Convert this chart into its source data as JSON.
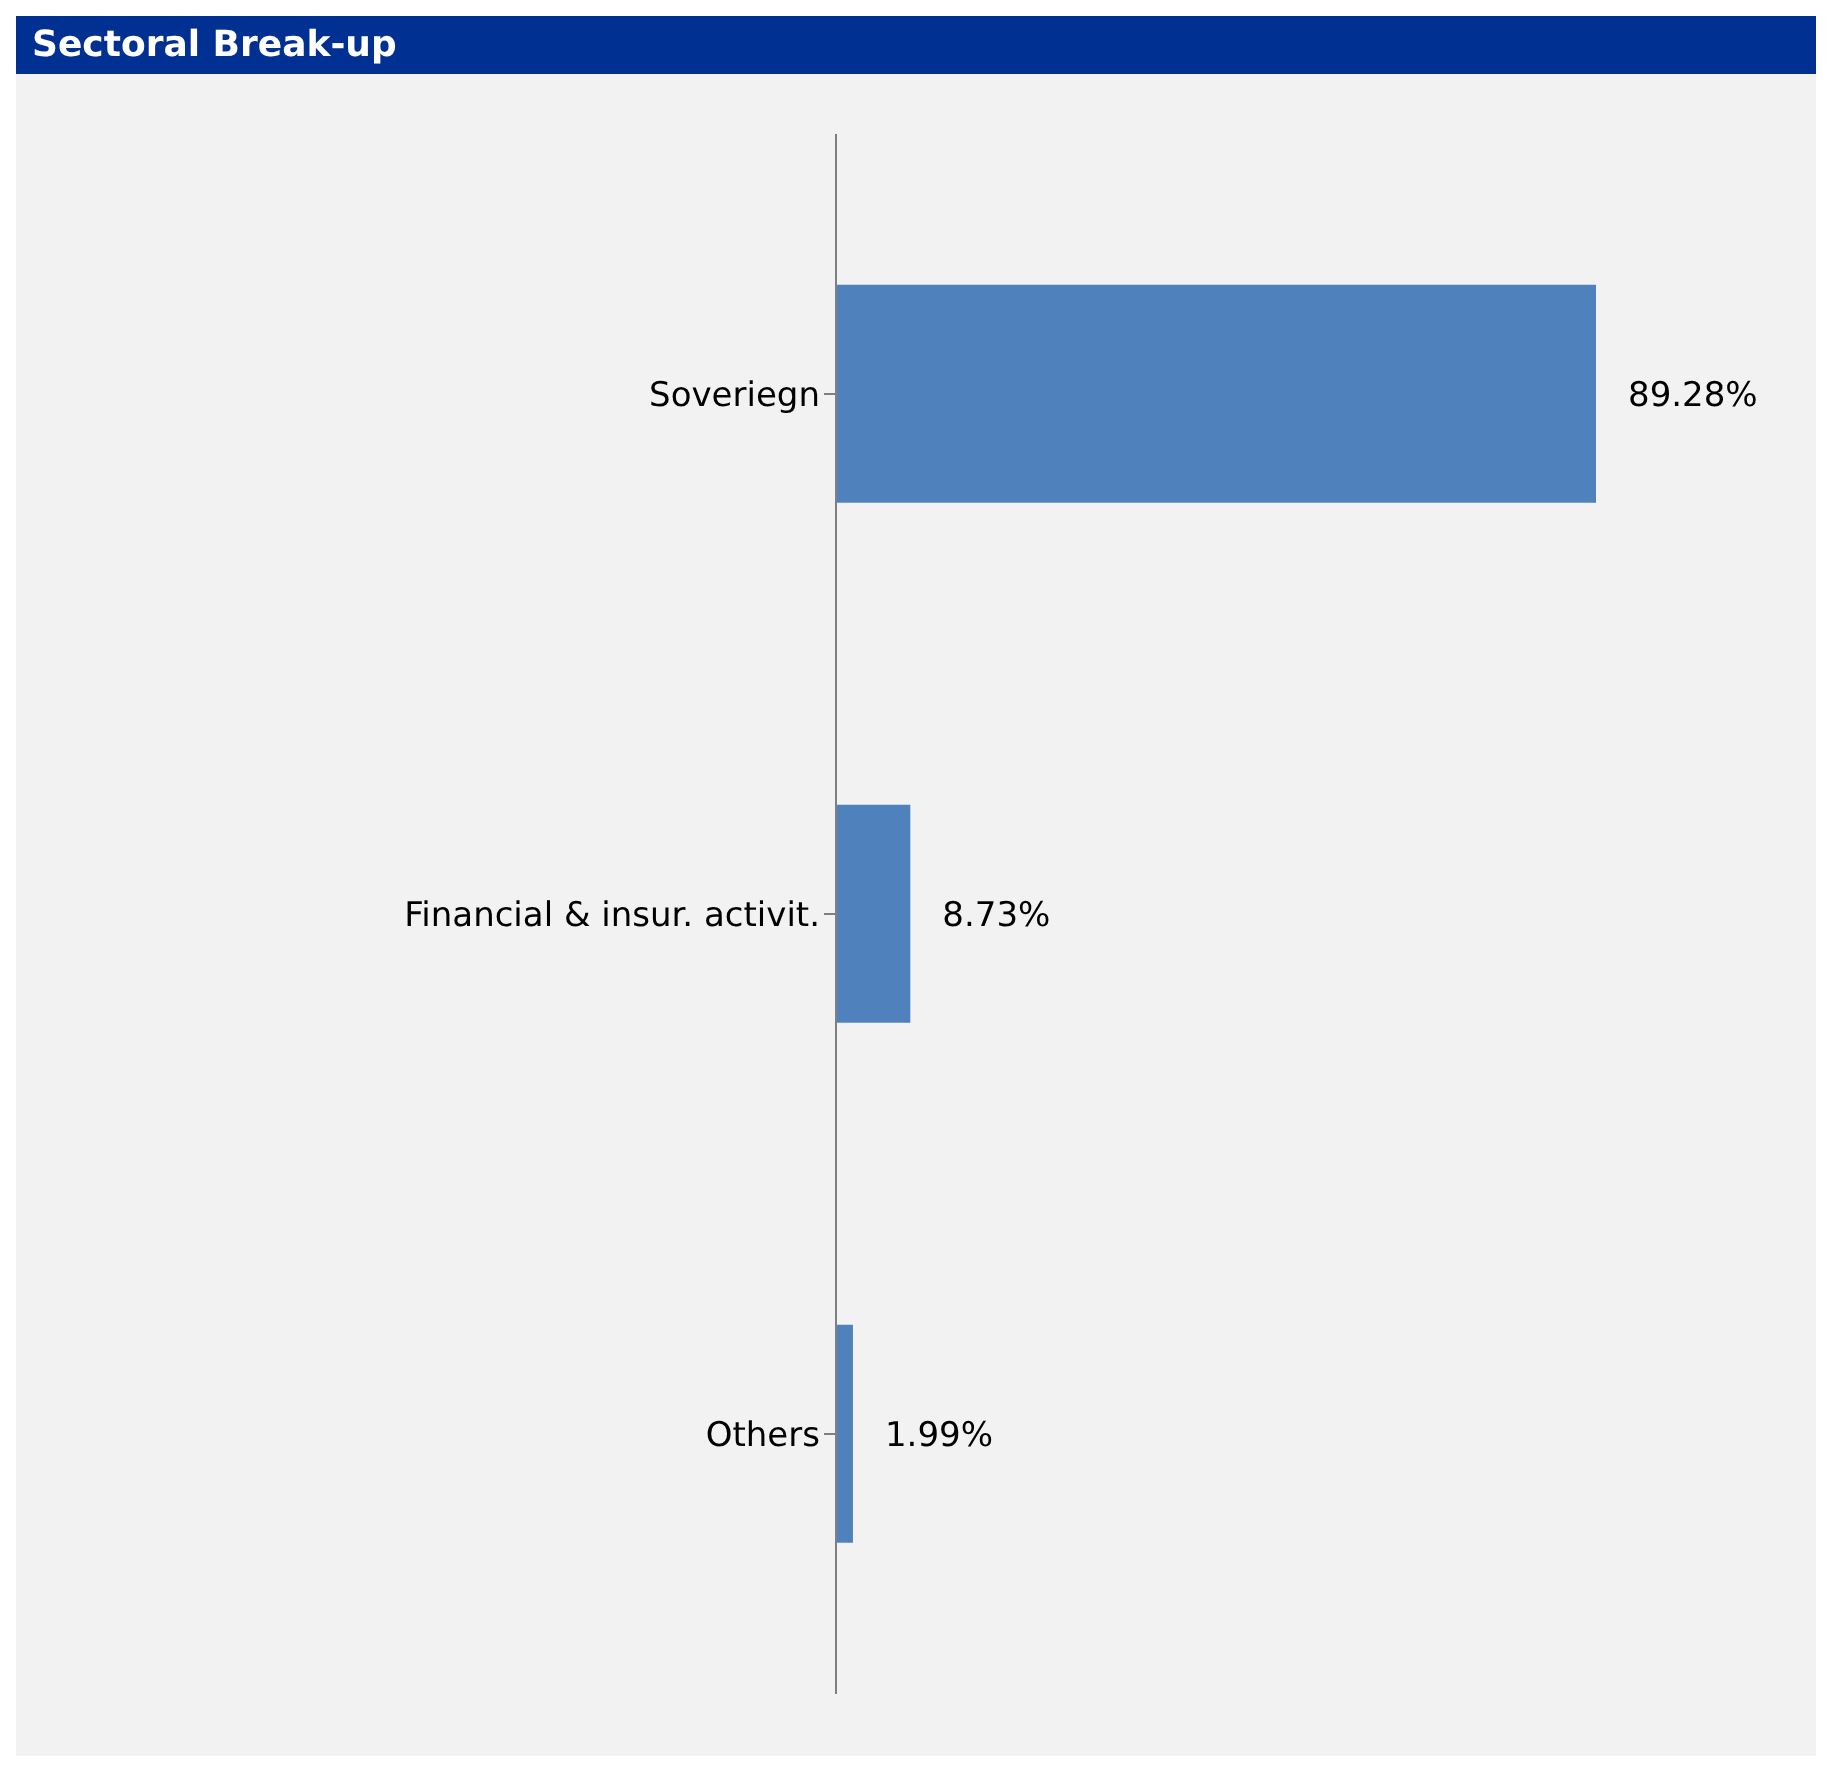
{
  "chart_data": {
    "type": "bar",
    "orientation": "horizontal",
    "title": "Sectoral Break-up",
    "categories": [
      "Soveriegn",
      "Financial & insur. activit.",
      "Others"
    ],
    "values": [
      89.28,
      8.73,
      1.99
    ],
    "value_labels": [
      "89.28%",
      "8.73%",
      "1.99%"
    ],
    "color": "#4f81bd",
    "grid": false,
    "legend": false
  }
}
